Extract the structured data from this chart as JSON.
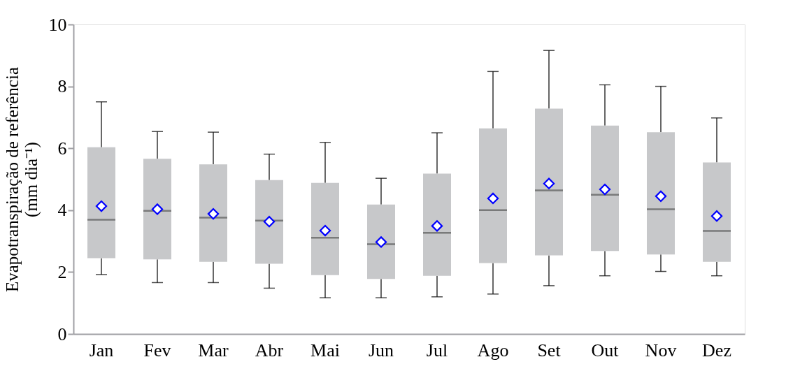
{
  "chart_data": {
    "type": "box",
    "ylabel": "Evapotranspiração de referência\n(mm dia⁻¹)",
    "categories": [
      "Jan",
      "Fev",
      "Mar",
      "Abr",
      "Mai",
      "Jun",
      "Jul",
      "Ago",
      "Set",
      "Out",
      "Nov",
      "Dez"
    ],
    "boxes": [
      {
        "low": 1.92,
        "q1": 2.45,
        "median": 3.69,
        "q3": 6.03,
        "high": 7.5,
        "mean": 4.13
      },
      {
        "low": 1.66,
        "q1": 2.41,
        "median": 3.98,
        "q3": 5.66,
        "high": 6.54,
        "mean": 4.03
      },
      {
        "low": 1.66,
        "q1": 2.33,
        "median": 3.76,
        "q3": 5.48,
        "high": 6.52,
        "mean": 3.88
      },
      {
        "low": 1.48,
        "q1": 2.27,
        "median": 3.66,
        "q3": 4.97,
        "high": 5.81,
        "mean": 3.63
      },
      {
        "low": 1.17,
        "q1": 1.9,
        "median": 3.11,
        "q3": 4.88,
        "high": 6.19,
        "mean": 3.34
      },
      {
        "low": 1.17,
        "q1": 1.78,
        "median": 2.9,
        "q3": 4.18,
        "high": 5.03,
        "mean": 2.97
      },
      {
        "low": 1.2,
        "q1": 1.88,
        "median": 3.27,
        "q3": 5.18,
        "high": 6.5,
        "mean": 3.49
      },
      {
        "low": 1.29,
        "q1": 2.29,
        "median": 4.0,
        "q3": 6.64,
        "high": 8.48,
        "mean": 4.38
      },
      {
        "low": 1.56,
        "q1": 2.54,
        "median": 4.64,
        "q3": 7.28,
        "high": 9.16,
        "mean": 4.86
      },
      {
        "low": 1.88,
        "q1": 2.68,
        "median": 4.5,
        "q3": 6.73,
        "high": 8.05,
        "mean": 4.67
      },
      {
        "low": 2.02,
        "q1": 2.57,
        "median": 4.03,
        "q3": 6.52,
        "high": 8.0,
        "mean": 4.45
      },
      {
        "low": 1.88,
        "q1": 2.33,
        "median": 3.33,
        "q3": 5.54,
        "high": 6.98,
        "mean": 3.81
      }
    ],
    "color": "#c7c8ca",
    "marker": "diamond",
    "ylim": [
      0,
      10
    ],
    "yticks": [
      0,
      2,
      4,
      6,
      8,
      10
    ],
    "grid": false
  }
}
